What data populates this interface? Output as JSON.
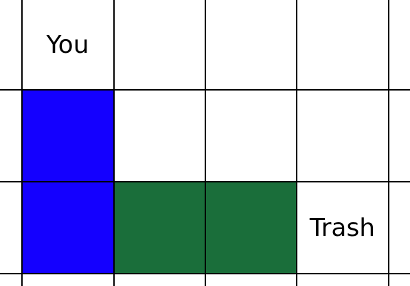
{
  "board": {
    "grid_color": "#000000",
    "background_color": "#ffffff",
    "cells": [
      {
        "name": "player-cell",
        "label": "You",
        "color": "#ffffff",
        "row": 0,
        "col": 0
      },
      {
        "name": "blue-block-top",
        "label": "",
        "color": "#1400ff",
        "row": 1,
        "col": 0
      },
      {
        "name": "blue-block-bottom",
        "label": "",
        "color": "#1400ff",
        "row": 2,
        "col": 0
      },
      {
        "name": "green-block-left",
        "label": "",
        "color": "#1a6e3a",
        "row": 2,
        "col": 1
      },
      {
        "name": "green-block-right",
        "label": "",
        "color": "#1a6e3a",
        "row": 2,
        "col": 2
      },
      {
        "name": "trash-cell",
        "label": "Trash",
        "color": "#ffffff",
        "row": 2,
        "col": 3
      }
    ]
  }
}
